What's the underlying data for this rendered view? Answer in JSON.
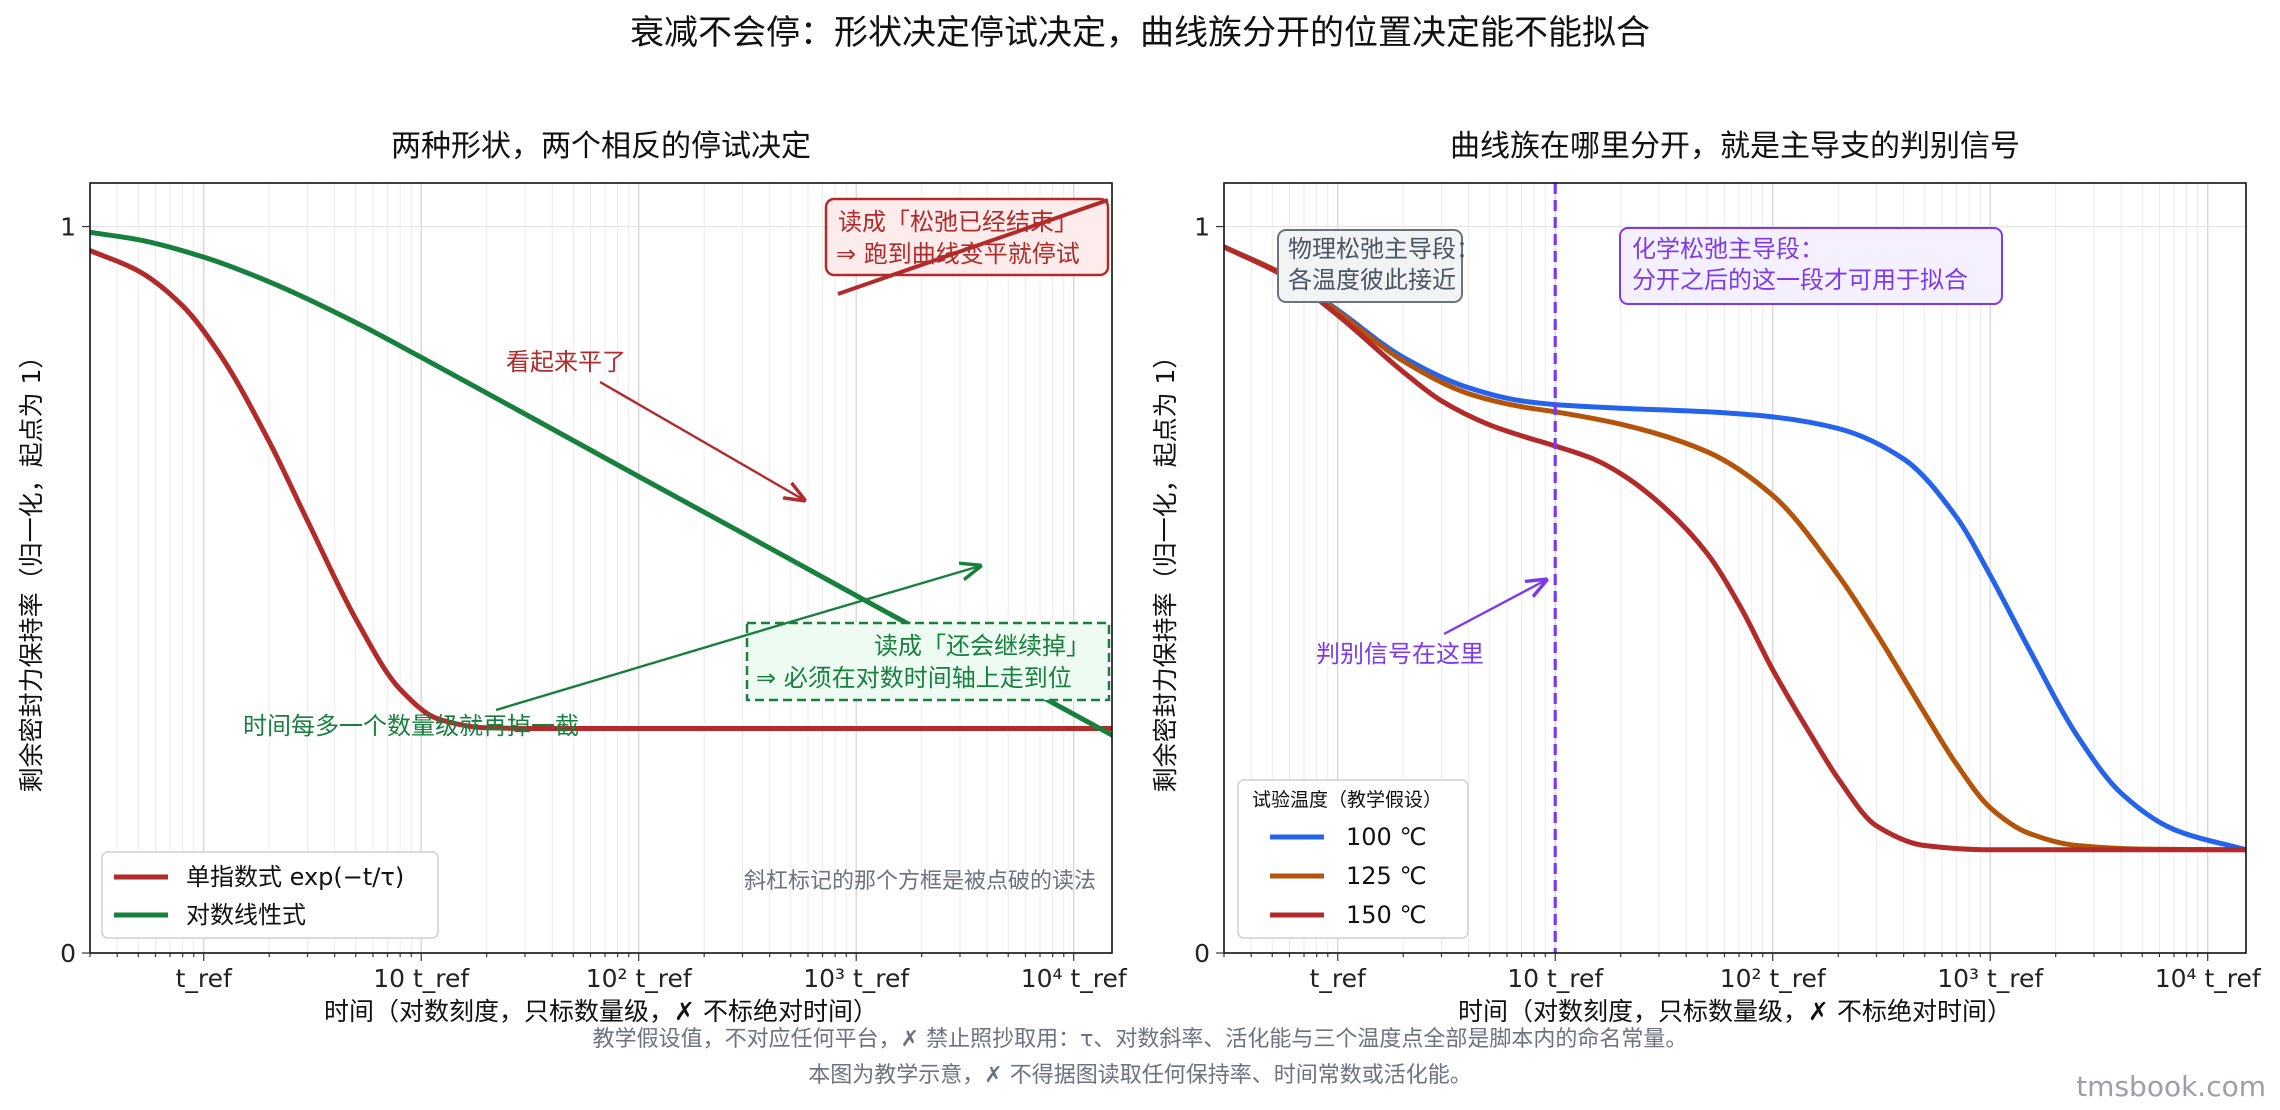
{
  "figure": {
    "suptitle": "衰减不会停：形状决定停试决定，曲线族分开的位置决定能不能拟合",
    "footnote1": "教学假设值，不对应任何平台，✗ 禁止照抄取用：τ、对数斜率、活化能与三个温度点全部是脚本内的命名常量。",
    "footnote2": "本图为教学示意，✗ 不得据图读取任何保持率、时间常数或活化能。",
    "brand": "tmsbook.com",
    "colors": {
      "red": "#b22a2a",
      "green": "#17803d",
      "blue": "#2563eb",
      "orange": "#b45309",
      "purple": "#7c3aed",
      "gray": "#6b7280"
    }
  },
  "chart_data": [
    {
      "type": "line",
      "title": "两种形状，两个相反的停试决定",
      "xlabel": "时间（对数刻度，只标数量级，✗ 不标绝对时间）",
      "ylabel": "剩余密封力保持率（归一化，起点为 1）",
      "x_scale": "log",
      "x_unit": "t_ref",
      "xlim": [
        0.3,
        15000
      ],
      "ylim": [
        0,
        1.06
      ],
      "x_ticks": [
        1,
        10,
        100,
        1000,
        10000
      ],
      "x_tick_labels": [
        "t_ref",
        "10 t_ref",
        "10² t_ref",
        "10³ t_ref",
        "10⁴ t_ref"
      ],
      "y_ticks": [
        0,
        1
      ],
      "y_tick_labels": [
        "0",
        "1"
      ],
      "grid": true,
      "legend": {
        "position": "lower-left"
      },
      "series": [
        {
          "name": "单指数式 exp(−t/τ)",
          "color": "#b22a2a",
          "x": [
            0.3,
            0.5,
            0.8,
            1.2,
            2,
            3,
            5,
            8,
            12,
            20,
            40,
            100,
            1000,
            15000
          ],
          "y": [
            0.967,
            0.939,
            0.891,
            0.822,
            0.704,
            0.595,
            0.46,
            0.363,
            0.322,
            0.31,
            0.309,
            0.309,
            0.309,
            0.309
          ]
        },
        {
          "name": "对数线性式",
          "color": "#17803d",
          "x": [
            0.3,
            0.5,
            1,
            2,
            5,
            10,
            30,
            100,
            300,
            1000,
            3000,
            15000
          ],
          "y": [
            0.992,
            0.982,
            0.958,
            0.924,
            0.868,
            0.82,
            0.742,
            0.656,
            0.578,
            0.492,
            0.414,
            0.3
          ]
        }
      ],
      "annotations": {
        "red_box_line1": "读成「松弛已经结束」",
        "red_box_line2": "⇒ 跑到曲线变平就停试",
        "red_arrow_text": "看起来平了",
        "green_box_line1": "读成「还会继续掉」",
        "green_box_line2": "⇒ 必须在对数时间轴上走到位",
        "green_arrow_text": "时间每多一个数量级就再掉一截",
        "strike_note": "斜杠标记的那个方框是被点破的读法"
      }
    },
    {
      "type": "line",
      "title": "曲线族在哪里分开，就是主导支的判别信号",
      "xlabel": "时间（对数刻度，只标数量级，✗ 不标绝对时间）",
      "ylabel": "剩余密封力保持率（归一化，起点为 1）",
      "x_scale": "log",
      "x_unit": "t_ref",
      "xlim": [
        0.3,
        15000
      ],
      "ylim": [
        0,
        1.06
      ],
      "x_ticks": [
        1,
        10,
        100,
        1000,
        10000
      ],
      "x_tick_labels": [
        "t_ref",
        "10 t_ref",
        "10² t_ref",
        "10³ t_ref",
        "10⁴ t_ref"
      ],
      "y_ticks": [
        0,
        1
      ],
      "y_tick_labels": [
        "0",
        "1"
      ],
      "grid": true,
      "legend": {
        "title": "试验温度（教学假设）",
        "position": "lower-left"
      },
      "marker_x": 10,
      "series": [
        {
          "name": "100 ℃",
          "color": "#2563eb",
          "x": [
            0.3,
            0.6,
            1,
            2,
            4,
            7,
            10,
            20,
            50,
            100,
            200,
            400,
            700,
            1000,
            1500,
            2500,
            4000,
            7000,
            15000
          ],
          "y": [
            0.972,
            0.93,
            0.885,
            0.82,
            0.778,
            0.76,
            0.755,
            0.75,
            0.745,
            0.738,
            0.722,
            0.68,
            0.6,
            0.52,
            0.42,
            0.3,
            0.22,
            0.17,
            0.142
          ]
        },
        {
          "name": "125 ℃",
          "color": "#b45309",
          "x": [
            0.3,
            0.6,
            1,
            2,
            4,
            7,
            10,
            20,
            50,
            100,
            200,
            300,
            500,
            700,
            1000,
            1500,
            2500,
            5000,
            15000
          ],
          "y": [
            0.972,
            0.93,
            0.883,
            0.815,
            0.77,
            0.752,
            0.745,
            0.728,
            0.69,
            0.63,
            0.52,
            0.44,
            0.33,
            0.26,
            0.2,
            0.165,
            0.148,
            0.143,
            0.142
          ]
        },
        {
          "name": "150 ℃",
          "color": "#b22a2a",
          "x": [
            0.3,
            0.6,
            1,
            2,
            3,
            5,
            7,
            10,
            15,
            20,
            30,
            50,
            70,
            100,
            150,
            200,
            300,
            500,
            1000,
            15000
          ],
          "y": [
            0.972,
            0.928,
            0.878,
            0.8,
            0.76,
            0.727,
            0.712,
            0.698,
            0.68,
            0.66,
            0.62,
            0.55,
            0.48,
            0.39,
            0.3,
            0.24,
            0.175,
            0.148,
            0.142,
            0.142
          ]
        }
      ],
      "annotations": {
        "gray_box_line1": "物理松弛主导段：",
        "gray_box_line2": "各温度彼此接近",
        "purple_box_line1": "化学松弛主导段：",
        "purple_box_line2": "分开之后的这一段才可用于拟合",
        "purple_arrow_text": "判别信号在这里"
      }
    }
  ]
}
